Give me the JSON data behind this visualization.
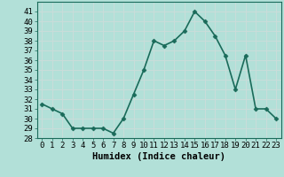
{
  "x": [
    0,
    1,
    2,
    3,
    4,
    5,
    6,
    7,
    8,
    9,
    10,
    11,
    12,
    13,
    14,
    15,
    16,
    17,
    18,
    19,
    20,
    21,
    22,
    23
  ],
  "y": [
    31.5,
    31.0,
    30.5,
    29.0,
    29.0,
    29.0,
    29.0,
    28.5,
    30.0,
    32.5,
    35.0,
    38.0,
    37.5,
    38.0,
    39.0,
    41.0,
    40.0,
    38.5,
    36.5,
    33.0,
    36.5,
    31.0,
    31.0,
    30.0
  ],
  "line_color": "#1a6b5a",
  "marker": "D",
  "marker_size": 2.5,
  "bg_color": "#b2e0d8",
  "grid_color": "#c8ddd9",
  "xlabel": "Humidex (Indice chaleur)",
  "ylim": [
    28,
    42
  ],
  "xlim": [
    -0.5,
    23.5
  ],
  "yticks": [
    28,
    29,
    30,
    31,
    32,
    33,
    34,
    35,
    36,
    37,
    38,
    39,
    40,
    41
  ],
  "xticks": [
    0,
    1,
    2,
    3,
    4,
    5,
    6,
    7,
    8,
    9,
    10,
    11,
    12,
    13,
    14,
    15,
    16,
    17,
    18,
    19,
    20,
    21,
    22,
    23
  ],
  "tick_fontsize": 6.5,
  "xlabel_fontsize": 7.5,
  "line_width": 1.2
}
